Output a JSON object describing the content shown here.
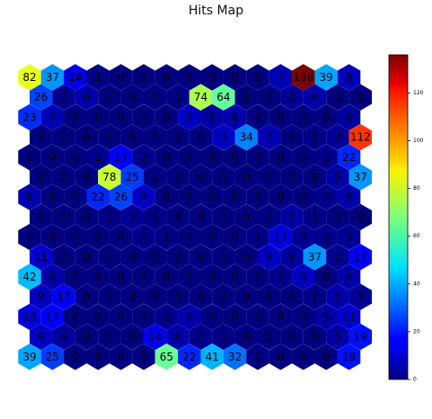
{
  "chart_data": {
    "type": "heatmap",
    "title": "Hits Map",
    "colormap": "jet",
    "vmin": 0,
    "vmax": 136,
    "colorbar_ticks": [
      0,
      20,
      40,
      60,
      80,
      100,
      120
    ],
    "rows": [
      [
        82,
        37,
        14,
        1,
        0,
        0,
        0,
        0,
        0,
        0,
        0,
        7,
        136,
        39,
        8
      ],
      [
        26,
        2,
        6,
        0,
        0,
        0,
        1,
        74,
        64,
        0,
        0,
        3,
        6,
        0,
        0
      ],
      [
        23,
        7,
        0,
        0,
        0,
        0,
        0,
        9,
        5,
        6,
        0,
        0,
        0,
        0,
        4
      ],
      [
        0,
        0,
        0,
        0,
        0,
        0,
        0,
        0,
        9,
        34,
        7,
        0,
        1,
        3,
        112
      ],
      [
        0,
        0,
        0,
        2,
        17,
        2,
        0,
        0,
        0,
        0,
        0,
        0,
        0,
        2,
        22
      ],
      [
        0,
        0,
        0,
        78,
        25,
        1,
        0,
        0,
        0,
        0,
        0,
        0,
        0,
        5,
        37
      ],
      [
        6,
        0,
        0,
        22,
        26,
        9,
        0,
        0,
        0,
        0,
        0,
        0,
        0,
        2,
        6
      ],
      [
        0,
        0,
        0,
        1,
        3,
        1,
        0,
        0,
        0,
        0,
        1,
        5,
        1,
        0,
        0
      ],
      [
        0,
        0,
        0,
        0,
        0,
        2,
        1,
        0,
        0,
        0,
        1,
        13,
        3,
        2,
        3
      ],
      [
        11,
        0,
        0,
        0,
        0,
        0,
        0,
        0,
        0,
        0,
        9,
        4,
        37,
        2,
        17
      ],
      [
        42,
        6,
        0,
        0,
        0,
        0,
        0,
        0,
        0,
        0,
        0,
        2,
        9,
        0,
        6
      ],
      [
        9,
        17,
        0,
        0,
        0,
        0,
        0,
        0,
        0,
        0,
        0,
        0,
        1,
        6,
        3
      ],
      [
        13,
        17,
        0,
        0,
        0,
        0,
        2,
        6,
        0,
        0,
        0,
        0,
        0,
        5,
        11
      ],
      [
        9,
        4,
        0,
        0,
        0,
        14,
        6,
        2,
        1,
        0,
        0,
        0,
        0,
        5,
        19
      ],
      [
        39,
        25,
        0,
        0,
        0,
        0,
        65,
        22,
        41,
        32,
        1,
        0,
        0,
        0,
        19
      ]
    ]
  }
}
